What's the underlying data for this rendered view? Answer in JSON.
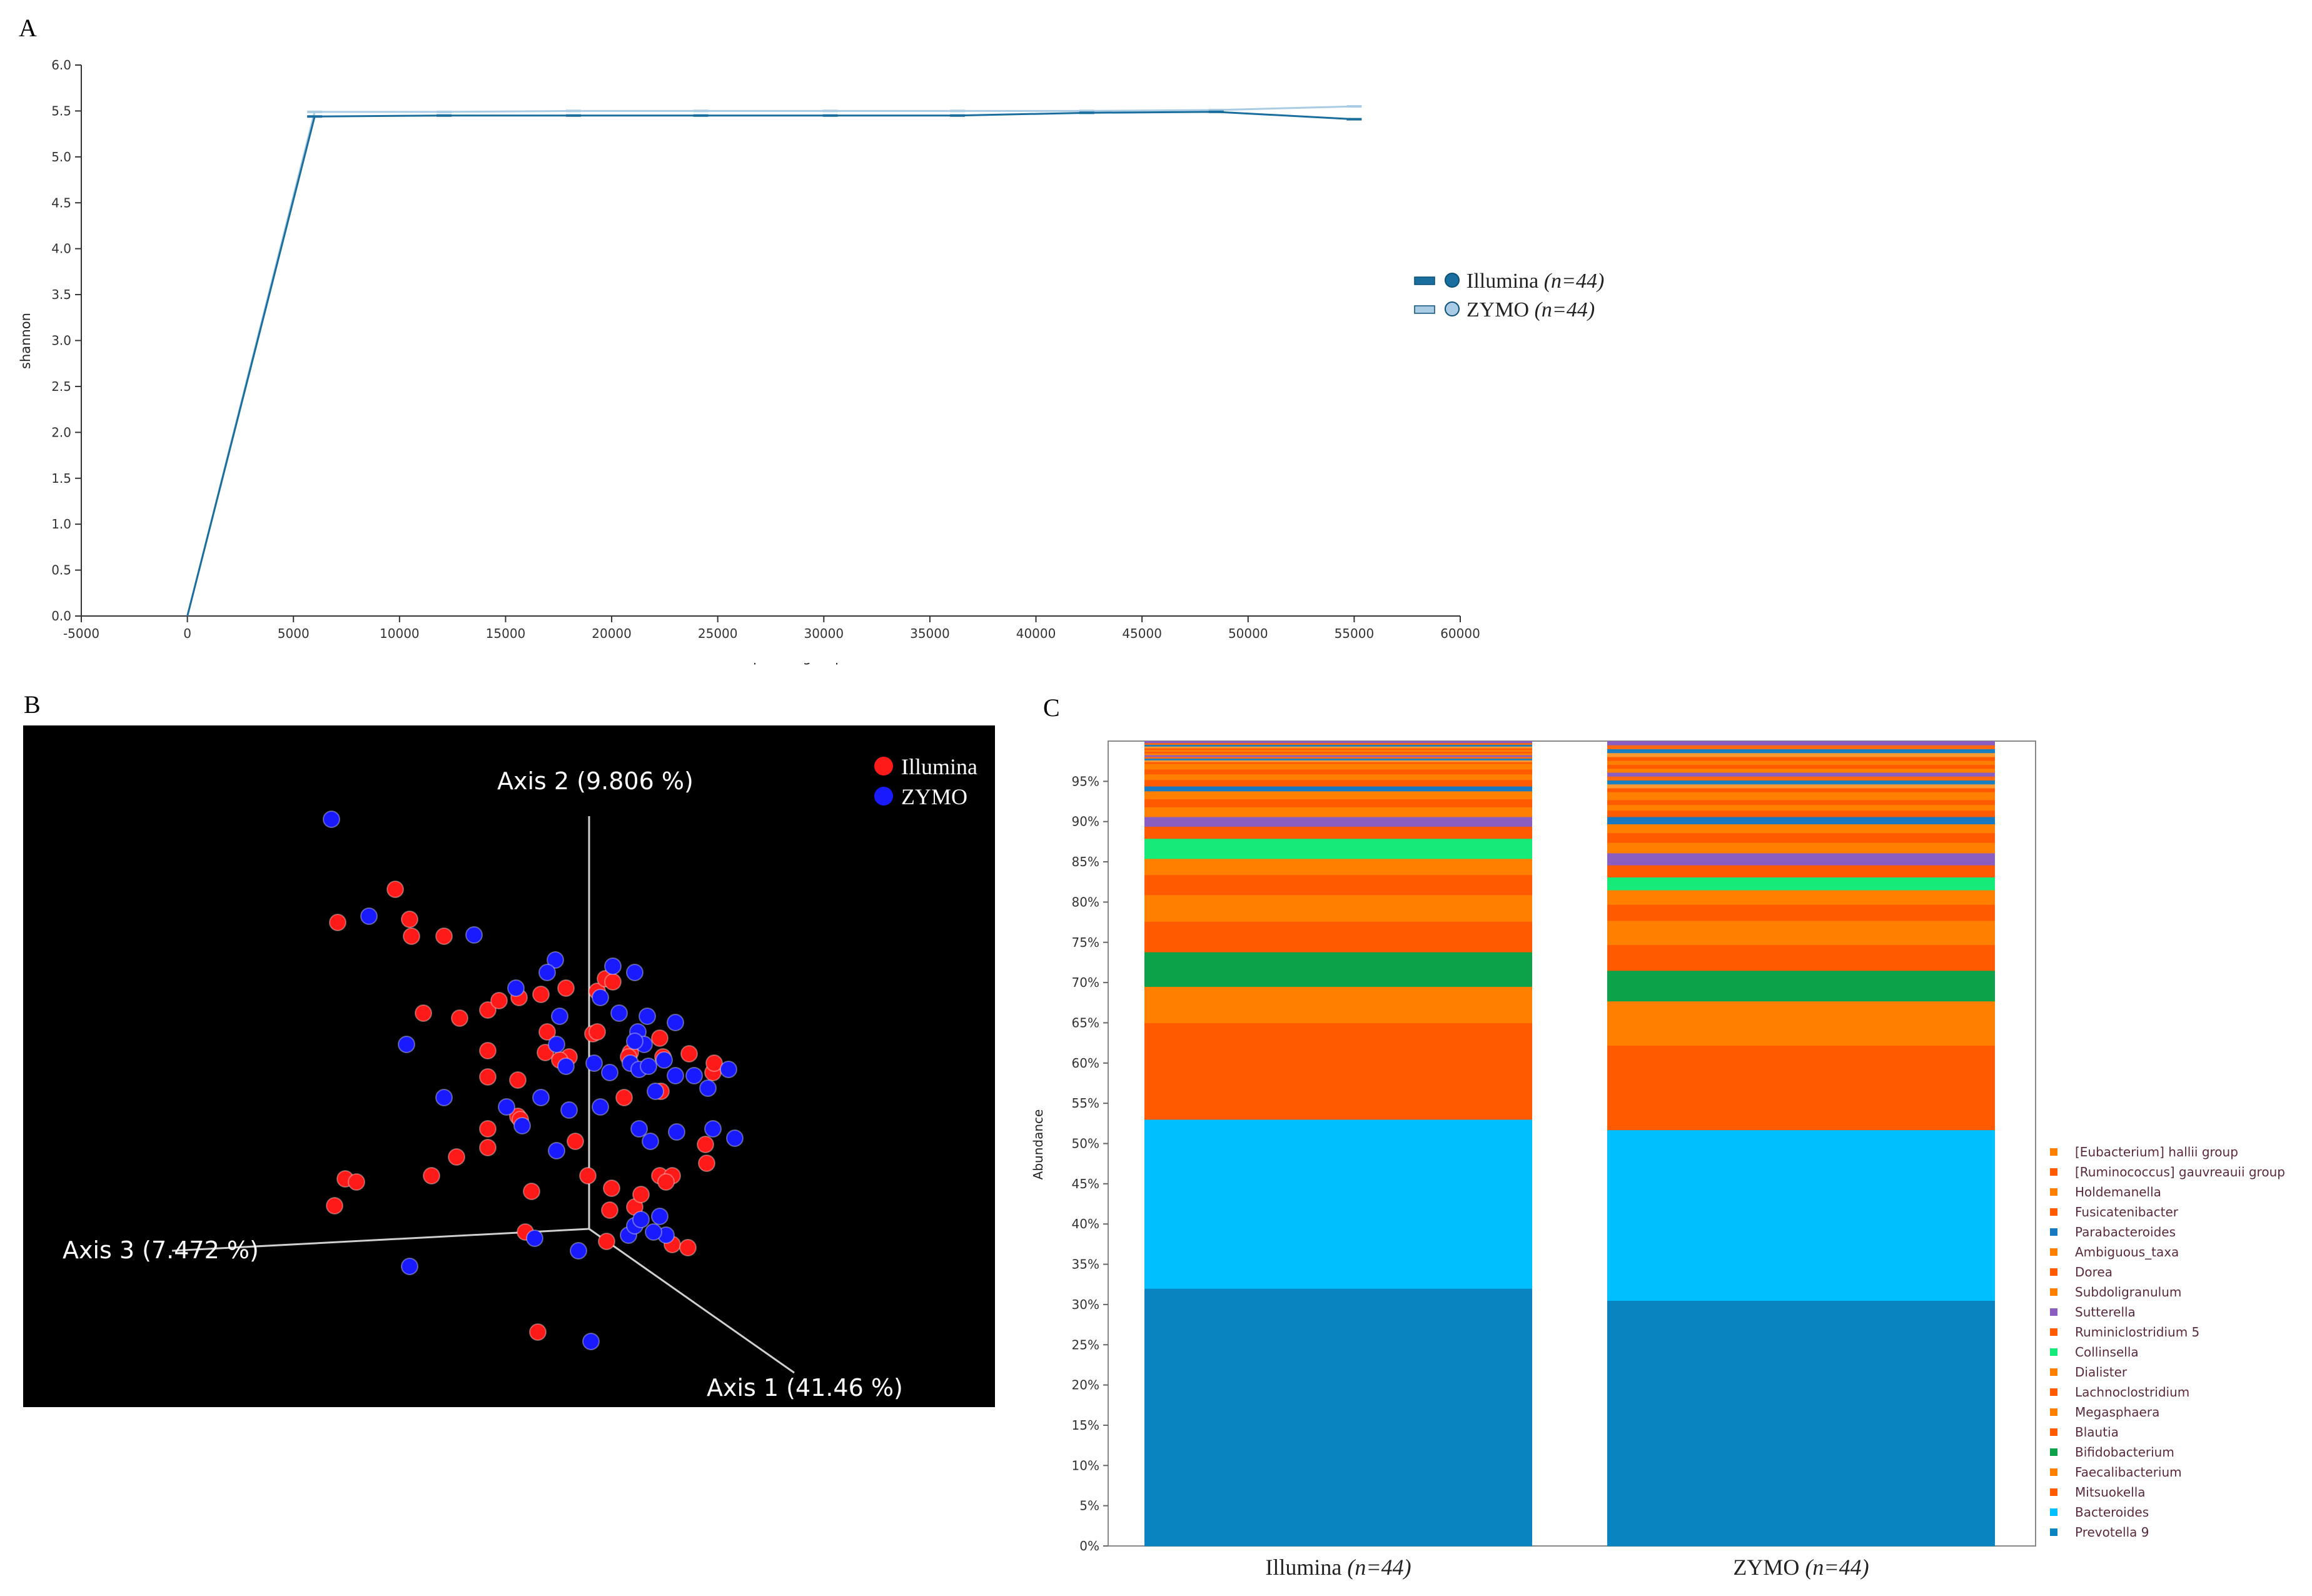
{
  "chart_data": [
    {
      "panel": "A",
      "type": "line",
      "title": "",
      "xlabel": "Sequencing Depth",
      "ylabel": "shannon",
      "xlim": [
        -5000,
        60000
      ],
      "ylim": [
        0,
        6.0
      ],
      "x_ticks": [
        "-5000",
        "0",
        "5000",
        "10000",
        "15000",
        "20000",
        "25000",
        "30000",
        "35000",
        "40000",
        "45000",
        "50000",
        "55000",
        "60000"
      ],
      "y_ticks": [
        "0.0",
        "0.5",
        "1.0",
        "1.5",
        "2.0",
        "2.5",
        "3.0",
        "3.5",
        "4.0",
        "4.5",
        "5.0",
        "5.5",
        "6.0"
      ],
      "legend": {
        "placement": "right",
        "entries": [
          {
            "name": "Illumina",
            "n": "(n=44)"
          },
          {
            "name": "ZYMO",
            "n": "(n=44)"
          }
        ]
      },
      "series": [
        {
          "name": "Illumina",
          "color": "#1a6e9e",
          "x": [
            0,
            6000,
            12100,
            18200,
            24200,
            30300,
            36300,
            42400,
            48500,
            55000
          ],
          "y": [
            0.0,
            5.44,
            5.45,
            5.45,
            5.45,
            5.45,
            5.45,
            5.48,
            5.49,
            5.41
          ]
        },
        {
          "name": "ZYMO",
          "color": "#a9cbe3",
          "x": [
            0,
            6000,
            12100,
            18200,
            24200,
            30300,
            36300,
            42400,
            48500,
            55000
          ],
          "y": [
            0.0,
            5.49,
            5.49,
            5.5,
            5.5,
            5.5,
            5.5,
            5.5,
            5.51,
            5.55
          ]
        }
      ]
    },
    {
      "panel": "B",
      "type": "scatter",
      "title": "",
      "axes": [
        "Axis 1 (41.46 %)",
        "Axis 2 (9.806 %)",
        "Axis 3 (7.472 %)"
      ],
      "legend": {
        "placement": "top-right",
        "entries": [
          {
            "name": "Illumina",
            "color": "#ff1a1a"
          },
          {
            "name": "ZYMO",
            "color": "#1a1aff"
          }
        ]
      },
      "series": [
        {
          "name": "Illumina",
          "color": "#ff1a1a",
          "points": [
            [
              632,
              1422
            ],
            [
              540,
              1475
            ],
            [
              655,
              1470
            ],
            [
              658,
              1497
            ],
            [
              710,
              1497
            ],
            [
              677,
              1620
            ],
            [
              735,
              1628
            ],
            [
              780,
              1615
            ],
            [
              798,
              1600
            ],
            [
              830,
              1595
            ],
            [
              865,
              1590
            ],
            [
              905,
              1580
            ],
            [
              955,
              1585
            ],
            [
              968,
              1565
            ],
            [
              980,
              1570
            ],
            [
              780,
              1680
            ],
            [
              875,
              1650
            ],
            [
              780,
              1722
            ],
            [
              948,
              1653
            ],
            [
              955,
              1650
            ],
            [
              1008,
              1683
            ],
            [
              872,
              1683
            ],
            [
              910,
              1690
            ],
            [
              1005,
              1690
            ],
            [
              1102,
              1685
            ],
            [
              1140,
              1715
            ],
            [
              1142,
              1700
            ],
            [
              828,
              1727
            ],
            [
              895,
              1695
            ],
            [
              1055,
              1660
            ],
            [
              1060,
              1690
            ],
            [
              998,
              1755
            ],
            [
              1057,
              1745
            ],
            [
              828,
              1785
            ],
            [
              832,
              1790
            ],
            [
              780,
              1835
            ],
            [
              730,
              1850
            ],
            [
              780,
              1805
            ],
            [
              920,
              1825
            ],
            [
              690,
              1880
            ],
            [
              940,
              1880
            ],
            [
              1055,
              1880
            ],
            [
              1075,
              1880
            ],
            [
              1130,
              1860
            ],
            [
              1128,
              1830
            ],
            [
              978,
              1900
            ],
            [
              552,
              1885
            ],
            [
              570,
              1890
            ],
            [
              535,
              1928
            ],
            [
              850,
              1905
            ],
            [
              975,
              1935
            ],
            [
              1065,
              1890
            ],
            [
              840,
              1970
            ],
            [
              970,
              1985
            ],
            [
              860,
              2130
            ],
            [
              1075,
              1990
            ],
            [
              1100,
              1995
            ],
            [
              1015,
              1930
            ],
            [
              1025,
              1910
            ]
          ]
        },
        {
          "name": "ZYMO",
          "color": "#1a1aff",
          "points": [
            [
              530,
              1310
            ],
            [
              590,
              1465
            ],
            [
              758,
              1495
            ],
            [
              888,
              1535
            ],
            [
              875,
              1555
            ],
            [
              980,
              1545
            ],
            [
              1015,
              1555
            ],
            [
              825,
              1580
            ],
            [
              895,
              1625
            ],
            [
              960,
              1595
            ],
            [
              990,
              1620
            ],
            [
              1035,
              1625
            ],
            [
              1080,
              1635
            ],
            [
              1020,
              1650
            ],
            [
              1030,
              1670
            ],
            [
              1015,
              1665
            ],
            [
              1008,
              1700
            ],
            [
              1022,
              1710
            ],
            [
              1037,
              1705
            ],
            [
              950,
              1700
            ],
            [
              975,
              1715
            ],
            [
              650,
              1670
            ],
            [
              1080,
              1720
            ],
            [
              1110,
              1720
            ],
            [
              1062,
              1695
            ],
            [
              710,
              1755
            ],
            [
              865,
              1755
            ],
            [
              910,
              1775
            ],
            [
              810,
              1770
            ],
            [
              835,
              1800
            ],
            [
              960,
              1770
            ],
            [
              1048,
              1745
            ],
            [
              1132,
              1740
            ],
            [
              1165,
              1710
            ],
            [
              1022,
              1805
            ],
            [
              1082,
              1810
            ],
            [
              1175,
              1820
            ],
            [
              1140,
              1805
            ],
            [
              1040,
              1825
            ],
            [
              890,
              1840
            ],
            [
              855,
              1980
            ],
            [
              1005,
              1975
            ],
            [
              1065,
              1975
            ],
            [
              1015,
              1960
            ],
            [
              1045,
              1970
            ],
            [
              945,
              2145
            ],
            [
              655,
              2025
            ],
            [
              925,
              2000
            ],
            [
              1025,
              1950
            ],
            [
              1055,
              1945
            ],
            [
              905,
              1705
            ],
            [
              890,
              1670
            ]
          ]
        }
      ]
    },
    {
      "panel": "C",
      "type": "bar",
      "stacked": true,
      "ylabel": "Abundance",
      "ylim": [
        0,
        100
      ],
      "y_ticks": [
        "0%",
        "5%",
        "10%",
        "15%",
        "20%",
        "25%",
        "30%",
        "35%",
        "40%",
        "45%",
        "50%",
        "55%",
        "60%",
        "65%",
        "70%",
        "75%",
        "80%",
        "85%",
        "90%",
        "95%"
      ],
      "categories": [
        "Illumina",
        "ZYMO"
      ],
      "category_n": [
        "(n=44)",
        "(n=44)"
      ],
      "series": [
        {
          "name": "Prevotella 9",
          "color": "#0a84c0",
          "values": [
            32.0,
            30.5
          ]
        },
        {
          "name": "Bacteroides",
          "color": "#00bfff",
          "values": [
            21.0,
            21.2
          ]
        },
        {
          "name": "Mitsuokella",
          "color": "#ff5a00",
          "values": [
            12.0,
            10.5
          ]
        },
        {
          "name": "Faecalibacterium",
          "color": "#ff8000",
          "values": [
            4.5,
            5.5
          ]
        },
        {
          "name": "Bifidobacterium",
          "color": "#0ca24a",
          "values": [
            4.3,
            3.8
          ]
        },
        {
          "name": "Blautia",
          "color": "#ff5a00",
          "values": [
            3.8,
            3.2
          ]
        },
        {
          "name": "Megasphaera",
          "color": "#ff8000",
          "values": [
            3.3,
            3.0
          ]
        },
        {
          "name": "Lachnoclostridium",
          "color": "#ff5a00",
          "values": [
            2.5,
            2.0
          ]
        },
        {
          "name": "Dialister",
          "color": "#ff8000",
          "values": [
            2.0,
            1.8
          ]
        },
        {
          "name": "Collinsella",
          "color": "#16ea78",
          "values": [
            2.5,
            1.6
          ]
        },
        {
          "name": "Ruminiclostridium 5",
          "color": "#ff5a00",
          "values": [
            1.5,
            1.5
          ]
        },
        {
          "name": "Sutterella",
          "color": "#8a5ec0",
          "values": [
            1.2,
            1.5
          ]
        },
        {
          "name": "Subdoligranulum",
          "color": "#ff8000",
          "values": [
            1.2,
            1.3
          ]
        },
        {
          "name": "Dorea",
          "color": "#ff5a00",
          "values": [
            1.0,
            1.2
          ]
        },
        {
          "name": "Ambiguous_taxa",
          "color": "#ff8000",
          "values": [
            1.0,
            1.1
          ]
        },
        {
          "name": "Parabacteroides",
          "color": "#1878c0",
          "values": [
            0.6,
            0.9
          ]
        },
        {
          "name": "Fusicatenibacter",
          "color": "#ff5a00",
          "values": [
            0.8,
            0.8
          ]
        },
        {
          "name": "Holdemanella",
          "color": "#ff8000",
          "values": [
            0.7,
            0.7
          ]
        },
        {
          "name": "[Ruminococcus] gauvreauii group",
          "color": "#ff5a00",
          "values": [
            0.6,
            0.6
          ]
        },
        {
          "name": "[Eubacterium] hallii group",
          "color": "#ff8000",
          "values": [
            0.5,
            0.5
          ]
        }
      ],
      "other_taxa_percent": [
        3.0,
        7.8
      ]
    }
  ],
  "panel_labels": {
    "a": "A",
    "b": "B",
    "c": "C"
  }
}
